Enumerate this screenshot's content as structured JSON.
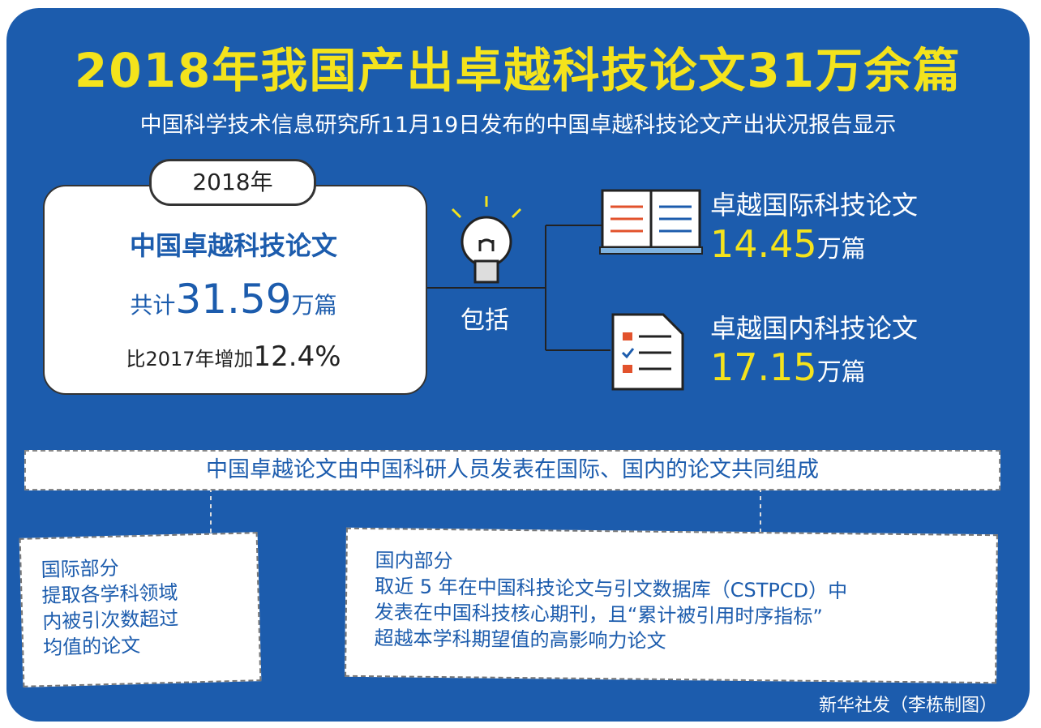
{
  "title": "2018年我国产出卓越科技论文31万余篇",
  "subtitle": "中国科学技术信息研究所11月19日发布的中国卓越科技论文产出状况报告显示",
  "summary": {
    "year": "2018年",
    "heading": "中国卓越科技论文",
    "total": {
      "prefix": "共计",
      "number": "31.59",
      "unit": "万篇"
    },
    "growth": {
      "prefix": "比2017年增加",
      "number": "12.4%"
    }
  },
  "connector": "包括",
  "items": [
    {
      "label": "卓越国际科技论文",
      "number": "14.45",
      "unit": "万篇"
    },
    {
      "label": "卓越国内科技论文",
      "number": "17.15",
      "unit": "万篇"
    }
  ],
  "note": "中国卓越论文由中国科研人员发表在国际、国内的论文共同组成",
  "parts": [
    {
      "title": "国际部分",
      "lines": [
        "提取各学科领域",
        "内被引次数超过",
        "均值的论文"
      ]
    },
    {
      "title": "国内部分",
      "lines": [
        "取近 5 年在中国科技论文与引文数据库（CSTPCD）中",
        "发表在中国科技核心期刊，且“累计被引用时序指标”",
        "超越本学科期望值的高影响力论文"
      ]
    }
  ],
  "credit": "新华社发（李栋制图）"
}
